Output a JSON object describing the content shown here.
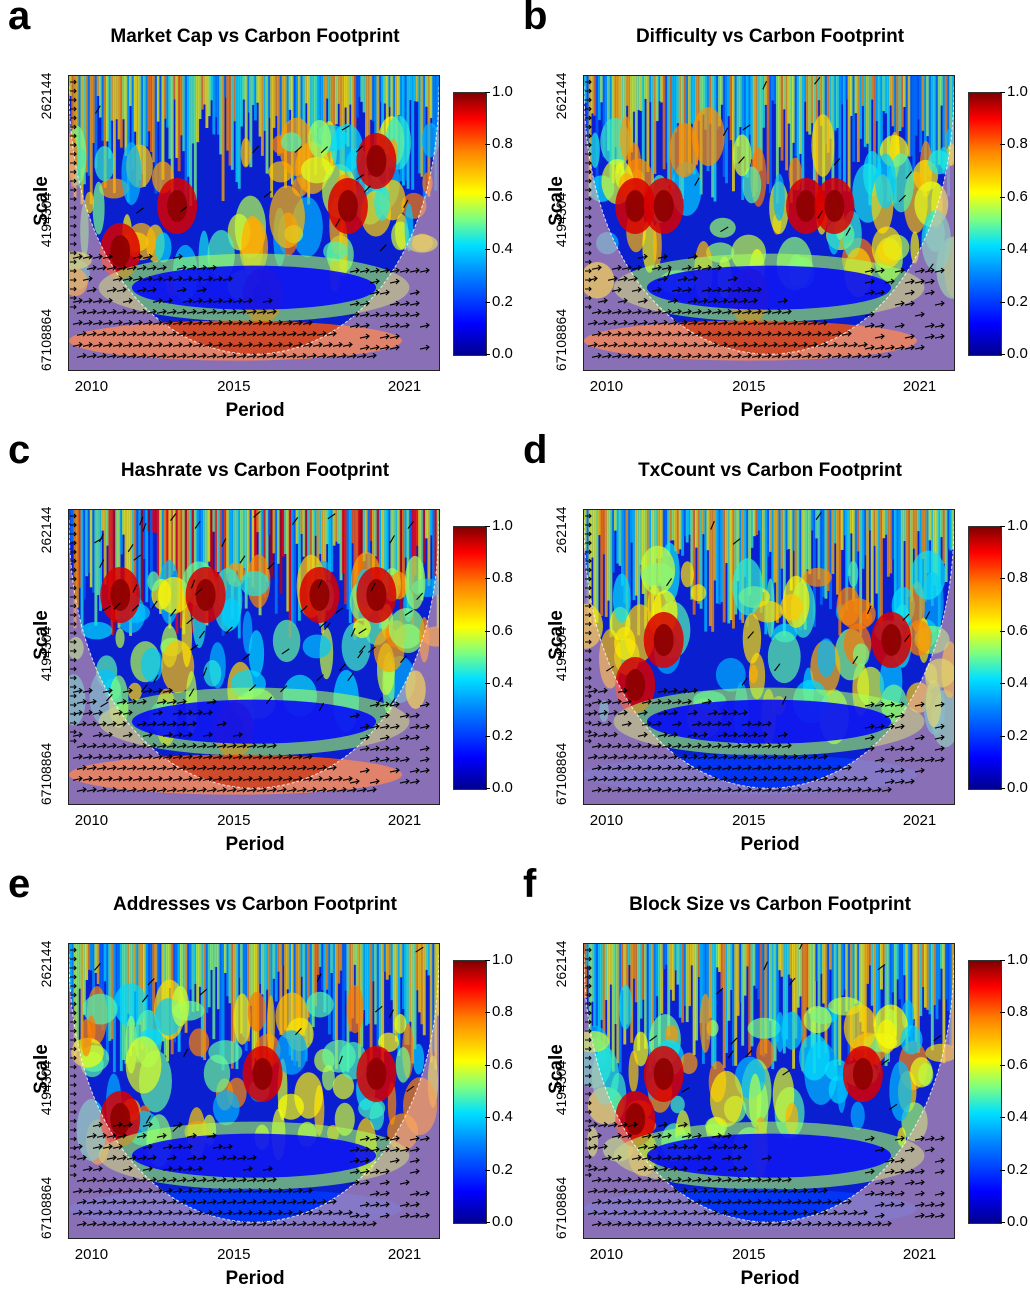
{
  "colorbar": {
    "ticks": [
      "0.0",
      "0.2",
      "0.4",
      "0.6",
      "0.8",
      "1.0"
    ],
    "colors": [
      "#00008f",
      "#0000ff",
      "#0080ff",
      "#00e0ff",
      "#7fff80",
      "#ffff00",
      "#ff8000",
      "#ff0000",
      "#800000"
    ]
  },
  "chart_data": [
    {
      "letter": "a",
      "type": "heatmap",
      "title": "Market Cap vs Carbon Footprint",
      "xlabel": "Period",
      "ylabel": "Scale",
      "x_ticks": [
        "2010",
        "2015",
        "2021"
      ],
      "y_ticks": [
        "262144",
        "4194304",
        "67108864"
      ],
      "zlim": [
        0,
        1
      ],
      "hot_spots": [
        [
          2011,
          3
        ],
        [
          2013,
          2
        ],
        [
          2019,
          2
        ],
        [
          2020,
          1
        ],
        [
          2016,
          4
        ]
      ]
    },
    {
      "letter": "b",
      "type": "heatmap",
      "title": "Difficulty vs Carbon Footprint",
      "xlabel": "Period",
      "ylabel": "Scale",
      "x_ticks": [
        "2010",
        "2015",
        "2021"
      ],
      "y_ticks": [
        "262144",
        "4194304",
        "67108864"
      ],
      "zlim": [
        0,
        1
      ],
      "hot_spots": [
        [
          2011,
          2
        ],
        [
          2012,
          2
        ],
        [
          2017,
          2
        ],
        [
          2018,
          2
        ],
        [
          2015,
          4
        ]
      ]
    },
    {
      "letter": "c",
      "type": "heatmap",
      "title": "Hashrate vs Carbon Footprint",
      "xlabel": "Period",
      "ylabel": "Scale",
      "x_ticks": [
        "2010",
        "2015",
        "2021"
      ],
      "y_ticks": [
        "262144",
        "4194304",
        "67108864"
      ],
      "zlim": [
        0,
        1
      ],
      "hot_spots": [
        [
          2011,
          1
        ],
        [
          2014,
          1
        ],
        [
          2018,
          1
        ],
        [
          2020,
          1
        ],
        [
          2015,
          4
        ]
      ]
    },
    {
      "letter": "d",
      "type": "heatmap",
      "title": "TxCount vs Carbon Footprint",
      "xlabel": "Period",
      "ylabel": "Scale",
      "x_ticks": [
        "2010",
        "2015",
        "2021"
      ],
      "y_ticks": [
        "262144",
        "4194304",
        "67108864"
      ],
      "zlim": [
        0,
        1
      ],
      "hot_spots": [
        [
          2012,
          2
        ],
        [
          2020,
          2
        ],
        [
          2011,
          3
        ]
      ]
    },
    {
      "letter": "e",
      "type": "heatmap",
      "title": "Addresses vs Carbon Footprint",
      "xlabel": "Period",
      "ylabel": "Scale",
      "x_ticks": [
        "2010",
        "2015",
        "2021"
      ],
      "y_ticks": [
        "262144",
        "4194304",
        "67108864"
      ],
      "zlim": [
        0,
        1
      ],
      "hot_spots": [
        [
          2011,
          3
        ],
        [
          2016,
          2
        ],
        [
          2020,
          2
        ]
      ]
    },
    {
      "letter": "f",
      "type": "heatmap",
      "title": "Block Size vs Carbon Footprint",
      "xlabel": "Period",
      "ylabel": "Scale",
      "x_ticks": [
        "2010",
        "2015",
        "2021"
      ],
      "y_ticks": [
        "262144",
        "4194304",
        "67108864"
      ],
      "zlim": [
        0,
        1
      ],
      "hot_spots": [
        [
          2012,
          2
        ],
        [
          2019,
          2
        ],
        [
          2011,
          3
        ]
      ]
    }
  ]
}
